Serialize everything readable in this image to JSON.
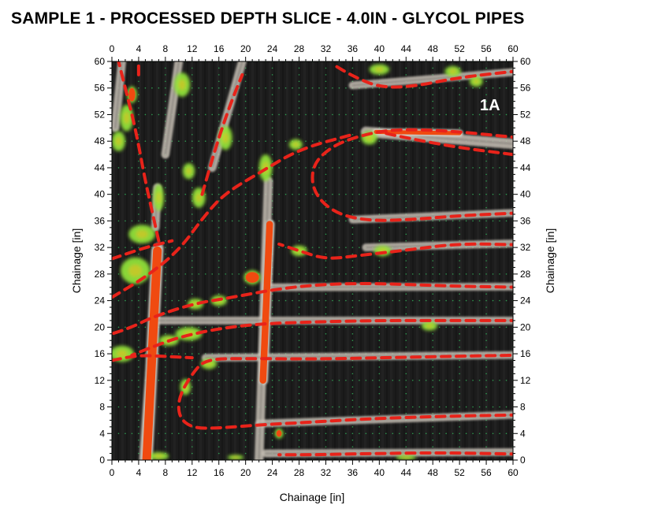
{
  "title": "SAMPLE 1 - PROCESSED DEPTH SLICE - 4.0IN - GLYCOL PIPES",
  "chart_data": {
    "type": "heatmap",
    "title": "SAMPLE 1 - PROCESSED DEPTH SLICE - 4.0IN - GLYCOL PIPES",
    "panel_label": "1A",
    "xlabel": "Chainage [in]",
    "ylabel": "Chainage [in]",
    "xlim": [
      0,
      60
    ],
    "ylim": [
      0,
      60
    ],
    "xticks": [
      "0",
      "4",
      "8",
      "12",
      "16",
      "20",
      "24",
      "28",
      "32",
      "36",
      "40",
      "44",
      "48",
      "52",
      "56",
      "60"
    ],
    "yticks": [
      "0",
      "4",
      "8",
      "12",
      "16",
      "20",
      "24",
      "28",
      "32",
      "36",
      "40",
      "44",
      "48",
      "52",
      "56",
      "60"
    ],
    "grid": true,
    "colors": {
      "background": "#1c1c1c",
      "weak": "#8fe03a",
      "strong": "#f04a10",
      "halo": "#c9c2b8",
      "pipe_trace": "#e8231a"
    },
    "pipe_traces": [
      {
        "points": [
          [
            61,
            0.9
          ],
          [
            50,
            1.1
          ],
          [
            40,
            1.0
          ],
          [
            30,
            0.8
          ],
          [
            25,
            0.8
          ]
        ]
      },
      {
        "points": [
          [
            61,
            6.8
          ],
          [
            50,
            6.6
          ],
          [
            38,
            6.2
          ],
          [
            28,
            5.6
          ],
          [
            22,
            5.3
          ],
          [
            16,
            4.8
          ],
          [
            12,
            4.8
          ],
          [
            10,
            6.5
          ],
          [
            10,
            9.5
          ],
          [
            12,
            13.0
          ],
          [
            14,
            15.2
          ],
          [
            20,
            15.3
          ],
          [
            30,
            15.2
          ],
          [
            40,
            15.4
          ],
          [
            50,
            15.6
          ],
          [
            61,
            15.8
          ]
        ]
      },
      {
        "points": [
          [
            0,
            15.0
          ],
          [
            4,
            15.8
          ],
          [
            8,
            15.6
          ],
          [
            12,
            15.4
          ]
        ]
      },
      {
        "points": [
          [
            61,
            21.0
          ],
          [
            50,
            21.0
          ],
          [
            40,
            21.0
          ],
          [
            30,
            20.8
          ],
          [
            22,
            20.5
          ],
          [
            16,
            19.8
          ],
          [
            10,
            18.5
          ],
          [
            6,
            17.0
          ],
          [
            3,
            15.8
          ]
        ]
      },
      {
        "points": [
          [
            61,
            26.0
          ],
          [
            50,
            26.2
          ],
          [
            40,
            26.6
          ],
          [
            32,
            26.5
          ],
          [
            25,
            25.8
          ],
          [
            18,
            24.5
          ],
          [
            12,
            23.5
          ],
          [
            6,
            21.5
          ],
          [
            3,
            20.0
          ],
          [
            0,
            19.0
          ]
        ]
      },
      {
        "points": [
          [
            61,
            32.4
          ],
          [
            52,
            32.6
          ],
          [
            44,
            31.6
          ],
          [
            37,
            30.8
          ],
          [
            32,
            30.2
          ],
          [
            28,
            31.5
          ],
          [
            25,
            32.5
          ]
        ]
      },
      {
        "points": [
          [
            61,
            37.2
          ],
          [
            52,
            36.8
          ],
          [
            45,
            36.2
          ],
          [
            38,
            36.0
          ],
          [
            33,
            37.3
          ],
          [
            30,
            40.5
          ],
          [
            30,
            44.5
          ],
          [
            33,
            47.3
          ],
          [
            37,
            48.8
          ],
          [
            42,
            49.8
          ],
          [
            50,
            49.6
          ],
          [
            60,
            48.6
          ]
        ]
      },
      {
        "points": [
          [
            60,
            46.0
          ],
          [
            52,
            47.0
          ],
          [
            44,
            48.5
          ],
          [
            40,
            49.4
          ]
        ]
      },
      {
        "points": [
          [
            61,
            58.6
          ],
          [
            52,
            57.6
          ],
          [
            45,
            56.2
          ],
          [
            40,
            56.1
          ],
          [
            36,
            57.8
          ],
          [
            33,
            59.6
          ]
        ]
      },
      {
        "points": [
          [
            0,
            24.5
          ],
          [
            5,
            27.5
          ],
          [
            10,
            31.5
          ],
          [
            14,
            37.0
          ],
          [
            17,
            40.2
          ],
          [
            22,
            43.2
          ],
          [
            28,
            46.8
          ],
          [
            36,
            49.0
          ]
        ]
      },
      {
        "points": [
          [
            0,
            30.3
          ],
          [
            5,
            32.0
          ],
          [
            9,
            33.0
          ]
        ]
      },
      {
        "points": [
          [
            7,
            33.0
          ],
          [
            6,
            37.5
          ],
          [
            5,
            42.0
          ],
          [
            3.5,
            50.0
          ],
          [
            2.0,
            56.0
          ],
          [
            1.0,
            60.0
          ]
        ]
      },
      {
        "points": [
          [
            4.0,
            58.0
          ],
          [
            4.0,
            60.0
          ]
        ]
      },
      {
        "points": [
          [
            13.5,
            40.0
          ],
          [
            15.5,
            47.0
          ],
          [
            17.5,
            53.0
          ],
          [
            19.5,
            58.0
          ]
        ]
      }
    ],
    "anomalies": [
      {
        "shape": "strip",
        "level": "strong",
        "from": [
          5.2,
          0.0
        ],
        "to": [
          6.8,
          31.5
        ],
        "width": 1.3
      },
      {
        "shape": "strip",
        "level": "strong",
        "from": [
          22.6,
          12.0
        ],
        "to": [
          23.6,
          35.5
        ],
        "width": 1.0
      },
      {
        "shape": "strip",
        "level": "halo",
        "from": [
          22.0,
          0.0
        ],
        "to": [
          23.4,
          42.0
        ],
        "width": 1.0
      },
      {
        "shape": "strip",
        "level": "halo",
        "from": [
          4.8,
          0.0
        ],
        "to": [
          7.0,
          32.0
        ],
        "width": 1.1
      },
      {
        "shape": "strip",
        "level": "halo",
        "from": [
          6.5,
          35.0
        ],
        "to": [
          6.8,
          41.0
        ],
        "width": 0.9
      },
      {
        "shape": "strip",
        "level": "halo",
        "from": [
          23.0,
          1.0
        ],
        "to": [
          60.0,
          1.2
        ],
        "width": 0.8
      },
      {
        "shape": "strip",
        "level": "halo",
        "from": [
          22.0,
          5.5
        ],
        "to": [
          60.0,
          6.8
        ],
        "width": 0.8
      },
      {
        "shape": "strip",
        "level": "halo",
        "from": [
          14.0,
          15.4
        ],
        "to": [
          60.0,
          15.8
        ],
        "width": 0.8
      },
      {
        "shape": "strip",
        "level": "halo",
        "from": [
          7.0,
          21.0
        ],
        "to": [
          60.0,
          21.0
        ],
        "width": 0.8
      },
      {
        "shape": "strip",
        "level": "halo",
        "from": [
          23.0,
          26.0
        ],
        "to": [
          60.0,
          26.1
        ],
        "width": 0.8
      },
      {
        "shape": "strip",
        "level": "halo",
        "from": [
          38.0,
          32.0
        ],
        "to": [
          60.0,
          32.6
        ],
        "width": 0.8
      },
      {
        "shape": "strip",
        "level": "halo",
        "from": [
          36.0,
          36.2
        ],
        "to": [
          60.0,
          37.2
        ],
        "width": 0.8
      },
      {
        "shape": "strip",
        "level": "halo",
        "from": [
          38.0,
          49.4
        ],
        "to": [
          60.0,
          47.6
        ],
        "width": 1.2
      },
      {
        "shape": "strip",
        "level": "strong",
        "from": [
          39.5,
          49.4
        ],
        "to": [
          52.0,
          49.2
        ],
        "width": 0.6
      },
      {
        "shape": "strip",
        "level": "halo",
        "from": [
          36.0,
          56.4
        ],
        "to": [
          60.0,
          58.4
        ],
        "width": 0.8
      },
      {
        "shape": "strip",
        "level": "halo",
        "from": [
          0.5,
          50.0
        ],
        "to": [
          1.5,
          60.0
        ],
        "width": 0.9
      },
      {
        "shape": "strip",
        "level": "halo",
        "from": [
          15.0,
          44.0
        ],
        "to": [
          19.5,
          60.0
        ],
        "width": 0.9
      },
      {
        "shape": "strip",
        "level": "halo",
        "from": [
          8.0,
          46.0
        ],
        "to": [
          10.0,
          60.0
        ],
        "width": 0.9
      },
      {
        "shape": "blob",
        "level": "weak",
        "at": [
          1.5,
          16.0
        ],
        "r": [
          1.8,
          1.2
        ]
      },
      {
        "shape": "blob",
        "level": "weak",
        "at": [
          3.5,
          28.5
        ],
        "r": [
          2.2,
          2.0
        ]
      },
      {
        "shape": "blob",
        "level": "weak",
        "at": [
          4.5,
          34.0
        ],
        "r": [
          2.0,
          1.4
        ]
      },
      {
        "shape": "blob",
        "level": "weak",
        "at": [
          2.2,
          51.5
        ],
        "r": [
          1.0,
          2.0
        ]
      },
      {
        "shape": "blob",
        "level": "weak",
        "at": [
          1.0,
          48.0
        ],
        "r": [
          1.0,
          1.5
        ]
      },
      {
        "shape": "blob",
        "level": "weak",
        "at": [
          7.0,
          39.5
        ],
        "r": [
          0.8,
          2.0
        ]
      },
      {
        "shape": "blob",
        "level": "weak",
        "at": [
          8.5,
          18.0
        ],
        "r": [
          1.5,
          0.8
        ]
      },
      {
        "shape": "blob",
        "level": "weak",
        "at": [
          11.5,
          19.0
        ],
        "r": [
          2.0,
          1.0
        ]
      },
      {
        "shape": "blob",
        "level": "weak",
        "at": [
          11.0,
          11.0
        ],
        "r": [
          0.8,
          1.2
        ]
      },
      {
        "shape": "blob",
        "level": "weak",
        "at": [
          12.5,
          23.5
        ],
        "r": [
          1.2,
          0.8
        ]
      },
      {
        "shape": "blob",
        "level": "weak",
        "at": [
          16.0,
          24.0
        ],
        "r": [
          1.2,
          0.8
        ]
      },
      {
        "shape": "blob",
        "level": "weak",
        "at": [
          13.0,
          39.5
        ],
        "r": [
          1.0,
          1.5
        ]
      },
      {
        "shape": "blob",
        "level": "weak",
        "at": [
          10.5,
          56.5
        ],
        "r": [
          1.2,
          1.8
        ]
      },
      {
        "shape": "blob",
        "level": "weak",
        "at": [
          11.5,
          43.5
        ],
        "r": [
          0.9,
          1.2
        ]
      },
      {
        "shape": "blob",
        "level": "weak",
        "at": [
          17.0,
          48.5
        ],
        "r": [
          1.0,
          1.8
        ]
      },
      {
        "shape": "blob",
        "level": "weak",
        "at": [
          23.0,
          44.0
        ],
        "r": [
          1.0,
          2.0
        ]
      },
      {
        "shape": "blob",
        "level": "weak",
        "at": [
          28.0,
          31.5
        ],
        "r": [
          1.2,
          0.8
        ]
      },
      {
        "shape": "blob",
        "level": "weak",
        "at": [
          27.5,
          47.5
        ],
        "r": [
          1.0,
          0.8
        ]
      },
      {
        "shape": "blob",
        "level": "weak",
        "at": [
          38.5,
          48.5
        ],
        "r": [
          1.2,
          1.0
        ]
      },
      {
        "shape": "blob",
        "level": "weak",
        "at": [
          40.5,
          31.5
        ],
        "r": [
          1.3,
          0.8
        ]
      },
      {
        "shape": "blob",
        "level": "weak",
        "at": [
          47.5,
          20.2
        ],
        "r": [
          1.2,
          0.7
        ]
      },
      {
        "shape": "blob",
        "level": "weak",
        "at": [
          51.0,
          58.5
        ],
        "r": [
          1.2,
          0.8
        ]
      },
      {
        "shape": "blob",
        "level": "weak",
        "at": [
          54.5,
          57.0
        ],
        "r": [
          1.0,
          0.8
        ]
      },
      {
        "shape": "blob",
        "level": "weak",
        "at": [
          40.0,
          58.8
        ],
        "r": [
          1.5,
          0.8
        ]
      },
      {
        "shape": "blob",
        "level": "weak",
        "at": [
          7.0,
          0.6
        ],
        "r": [
          1.5,
          0.6
        ]
      },
      {
        "shape": "blob",
        "level": "weak",
        "at": [
          18.5,
          0.4
        ],
        "r": [
          1.2,
          0.4
        ]
      },
      {
        "shape": "blob",
        "level": "weak",
        "at": [
          44.0,
          0.4
        ],
        "r": [
          1.5,
          0.4
        ]
      },
      {
        "shape": "blob",
        "level": "weak",
        "at": [
          14.5,
          14.5
        ],
        "r": [
          1.2,
          0.8
        ]
      },
      {
        "shape": "blob",
        "level": "strong",
        "at": [
          21.0,
          27.5
        ],
        "r": [
          1.0,
          0.8
        ]
      },
      {
        "shape": "blob",
        "level": "strong",
        "at": [
          25.0,
          4.0
        ],
        "r": [
          0.4,
          0.5
        ]
      },
      {
        "shape": "blob",
        "level": "strong",
        "at": [
          3.0,
          55.0
        ],
        "r": [
          0.5,
          1.0
        ]
      }
    ]
  }
}
